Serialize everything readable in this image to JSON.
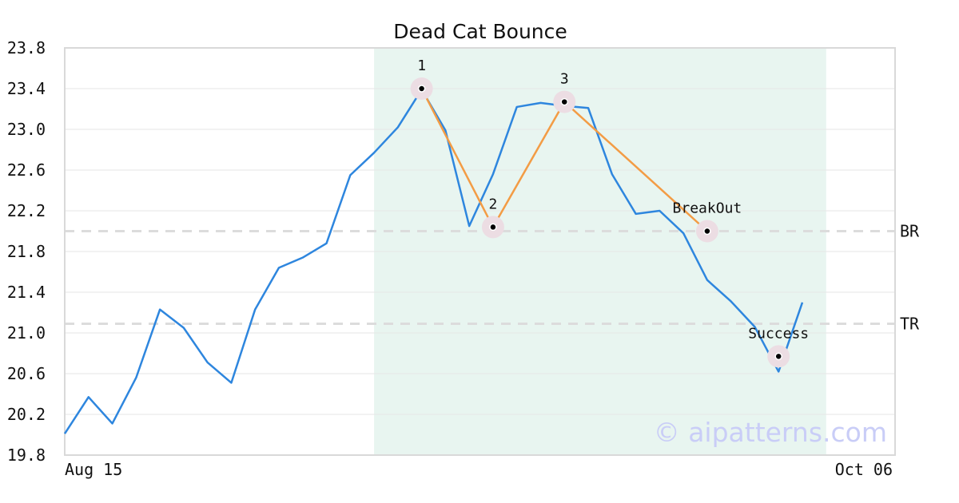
{
  "chart_data": {
    "type": "line",
    "title": "Dead Cat Bounce",
    "x_labels": [
      "Aug 15",
      "Oct 06"
    ],
    "ylim": [
      19.8,
      23.8
    ],
    "yticks": [
      "19.8",
      "20.2",
      "20.6",
      "21.0",
      "21.4",
      "21.8",
      "22.2",
      "22.6",
      "23.0",
      "23.4",
      "23.8"
    ],
    "grid": true,
    "series": [
      {
        "color": "#2e86de",
        "values": [
          20.01,
          20.37,
          20.11,
          20.56,
          21.23,
          21.05,
          20.71,
          20.51,
          21.23,
          21.64,
          21.74,
          21.88,
          22.55,
          22.77,
          23.02,
          23.39,
          22.99,
          22.05,
          22.56,
          23.22,
          23.26,
          23.23,
          23.21,
          22.56,
          22.17,
          22.2,
          21.98,
          21.52,
          21.31,
          21.06,
          20.62,
          21.3
        ]
      }
    ],
    "pattern": {
      "color": "#f39c45",
      "highlight_color": "#e8f5f0",
      "highlight_range": [
        13,
        32
      ],
      "points": [
        {
          "label": "1",
          "x": 15,
          "y": 23.4
        },
        {
          "label": "2",
          "x": 18,
          "y": 22.04
        },
        {
          "label": "3",
          "x": 21,
          "y": 23.27
        },
        {
          "label": "BreakOut",
          "x": 27,
          "y": 22.0
        }
      ],
      "success": {
        "label": "Success",
        "x": 30,
        "y": 20.77
      }
    },
    "levels": [
      {
        "label": "BR",
        "y": 22.0
      },
      {
        "label": "TR",
        "y": 21.09
      }
    ]
  },
  "watermark": "© aipatterns.com"
}
